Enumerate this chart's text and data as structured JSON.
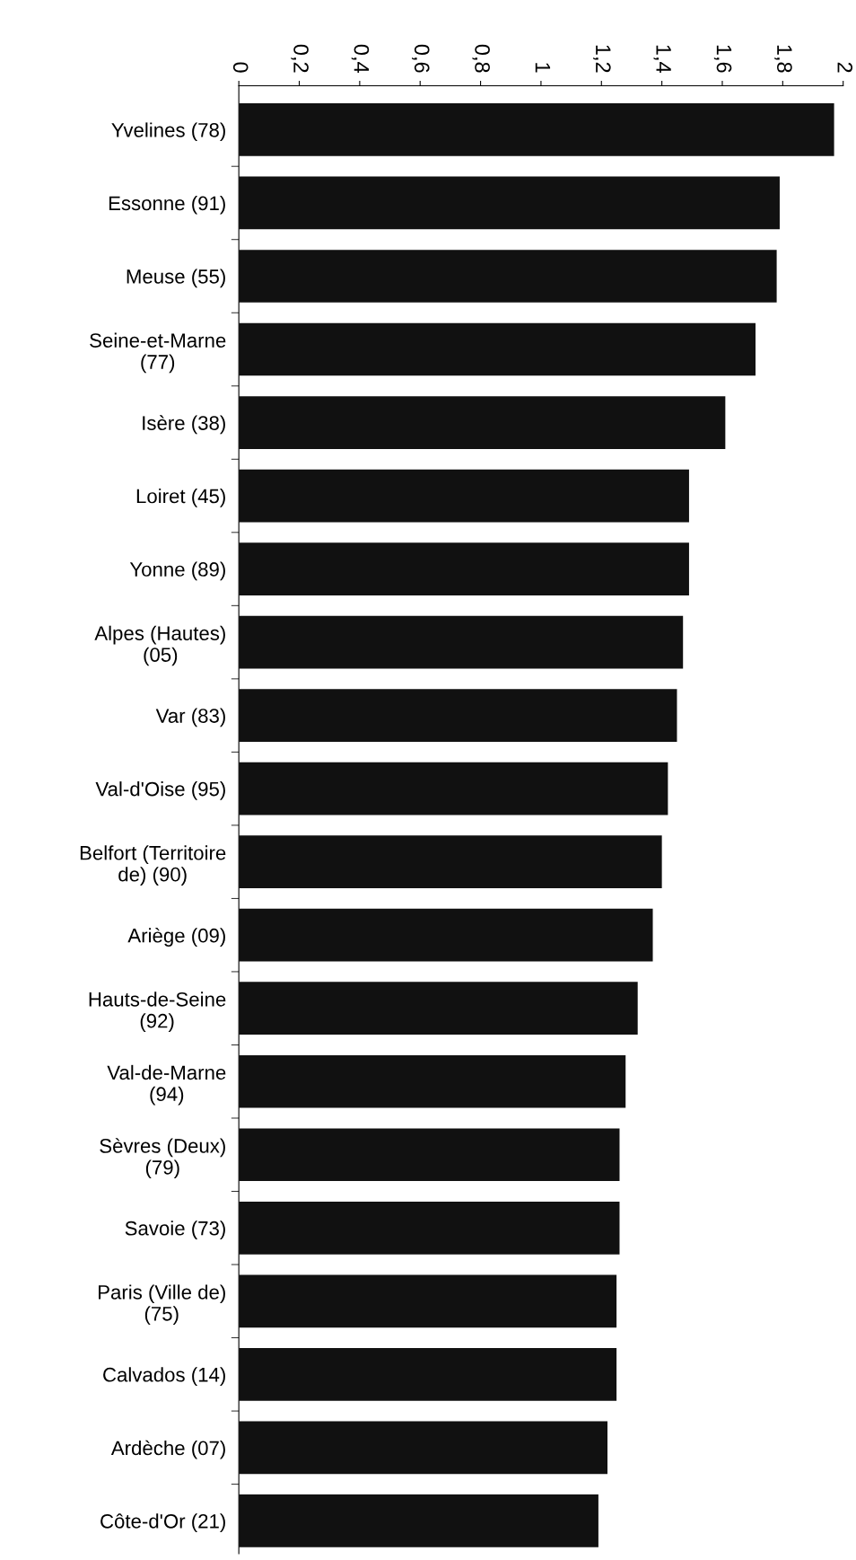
{
  "chart_data": {
    "type": "bar",
    "orientation": "horizontal",
    "categories": [
      "Yvelines (78)",
      "Essonne (91)",
      "Meuse (55)",
      "Seine-et-Marne\n(77)",
      "Isère (38)",
      "Loiret (45)",
      "Yonne (89)",
      "Alpes (Hautes)\n(05)",
      "Var (83)",
      "Val-d'Oise (95)",
      "Belfort (Territoire\nde) (90)",
      "Ariège (09)",
      "Hauts-de-Seine\n(92)",
      "Val-de-Marne\n(94)",
      "Sèvres (Deux)\n(79)",
      "Savoie (73)",
      "Paris (Ville de)\n(75)",
      "Calvados (14)",
      "Ardèche (07)",
      "Côte-d'Or (21)"
    ],
    "values": [
      1.97,
      1.79,
      1.78,
      1.71,
      1.61,
      1.49,
      1.49,
      1.47,
      1.45,
      1.42,
      1.4,
      1.37,
      1.32,
      1.28,
      1.26,
      1.26,
      1.25,
      1.25,
      1.22,
      1.19
    ],
    "color": "#111111",
    "xlim": [
      0,
      2
    ],
    "xticks": [
      0,
      {
        "value": 0.2,
        "label": "0,2"
      },
      {
        "value": 0.4,
        "label": "0,4"
      },
      {
        "value": 0.6,
        "label": "0,6"
      },
      {
        "value": 0.8,
        "label": "0,8"
      },
      1,
      {
        "value": 1.2,
        "label": "1,2"
      },
      {
        "value": 1.4,
        "label": "1,4"
      },
      {
        "value": 1.6,
        "label": "1,6"
      },
      {
        "value": 1.8,
        "label": "1,8"
      },
      2
    ],
    "grid": false,
    "legend": false
  }
}
